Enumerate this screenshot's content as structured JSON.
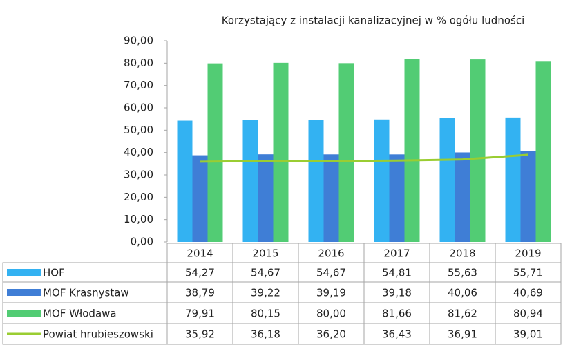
{
  "chart_data": {
    "type": "bar",
    "title": "Korzystający z instalacji kanalizacyjnej w % ogółu ludności",
    "categories": [
      "2014",
      "2015",
      "2016",
      "2017",
      "2018",
      "2019"
    ],
    "series": [
      {
        "name": "HOF",
        "type": "bar",
        "color": "#33b2f2",
        "values": [
          54.27,
          54.67,
          54.67,
          54.81,
          55.63,
          55.71
        ],
        "value_labels": [
          "54,27",
          "54,67",
          "54,67",
          "54,81",
          "55,63",
          "55,71"
        ]
      },
      {
        "name": "MOF Krasnystaw",
        "type": "bar",
        "color": "#3f7ed6",
        "values": [
          38.79,
          39.22,
          39.19,
          39.18,
          40.06,
          40.69
        ],
        "value_labels": [
          "38,79",
          "39,22",
          "39,19",
          "39,18",
          "40,06",
          "40,69"
        ]
      },
      {
        "name": "MOF Włodawa",
        "type": "bar",
        "color": "#52cc74",
        "values": [
          79.91,
          80.15,
          80.0,
          81.66,
          81.62,
          80.94
        ],
        "value_labels": [
          "79,91",
          "80,15",
          "80,00",
          "81,66",
          "81,62",
          "80,94"
        ]
      },
      {
        "name": "Powiat hrubieszowski",
        "type": "line",
        "color": "#9acd32",
        "values": [
          35.92,
          36.18,
          36.2,
          36.43,
          36.91,
          39.01
        ],
        "value_labels": [
          "35,92",
          "36,18",
          "36,20",
          "36,43",
          "36,91",
          "39,01"
        ]
      }
    ],
    "ylim": [
      0,
      90
    ],
    "yticks": [
      {
        "value": 0,
        "label": "0,00"
      },
      {
        "value": 10,
        "label": "10,00"
      },
      {
        "value": 20,
        "label": "20,00"
      },
      {
        "value": 30,
        "label": "30,00"
      },
      {
        "value": 40,
        "label": "40,00"
      },
      {
        "value": 50,
        "label": "50,00"
      },
      {
        "value": 60,
        "label": "60,00"
      },
      {
        "value": 70,
        "label": "70,00"
      },
      {
        "value": 80,
        "label": "80,00"
      },
      {
        "value": 90,
        "label": "90,00"
      }
    ]
  }
}
